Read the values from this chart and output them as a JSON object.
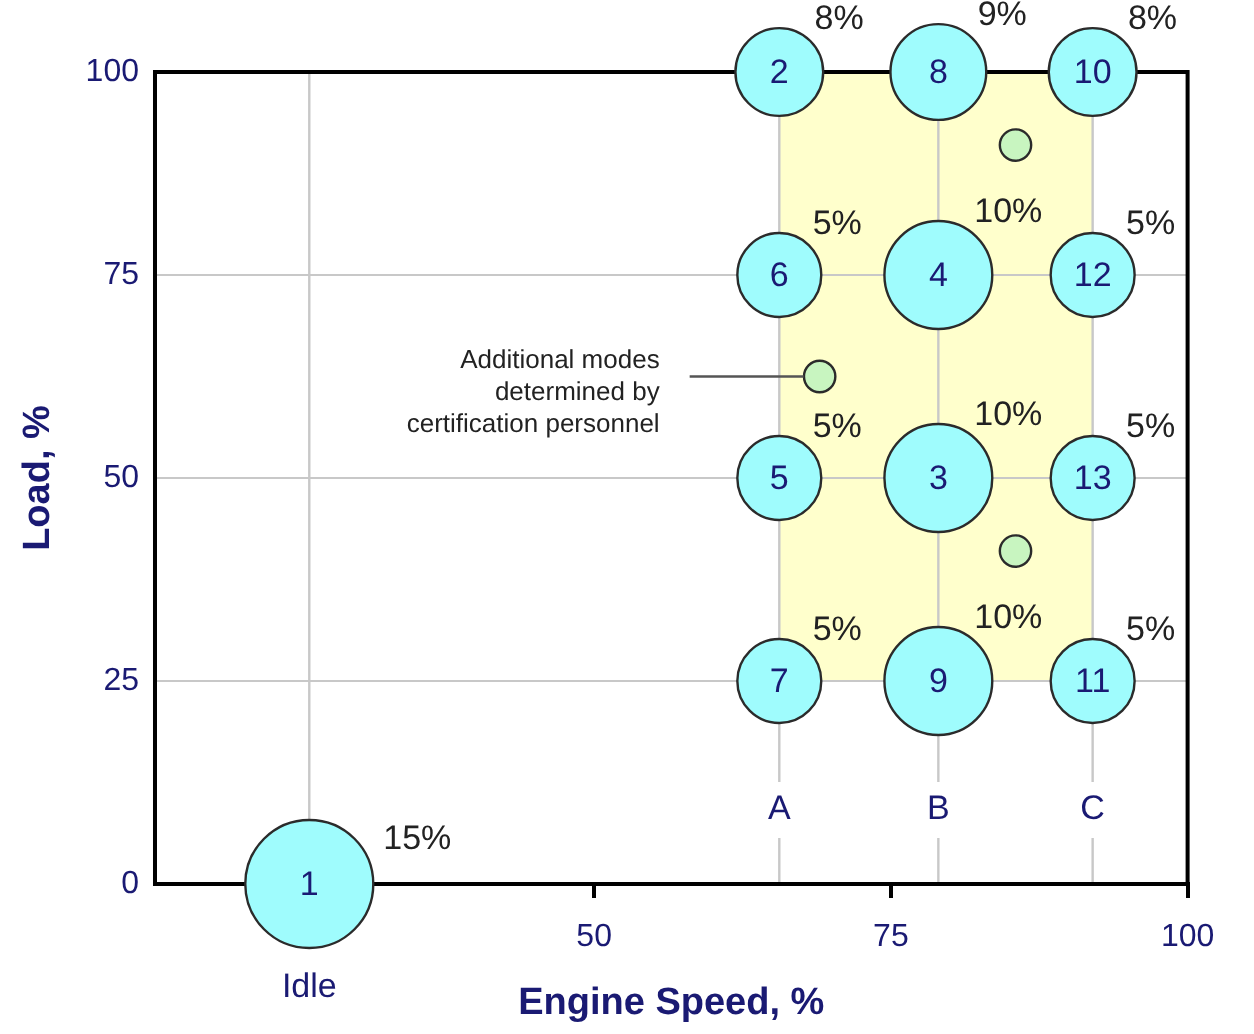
{
  "chart_data": {
    "type": "bubble",
    "xlabel": "Engine Speed, %",
    "ylabel": "Load, %",
    "xlim": [
      13,
      100
    ],
    "xticks": [
      50,
      75,
      100
    ],
    "ylim": [
      0,
      100
    ],
    "yticks": [
      0,
      25,
      50,
      75,
      100
    ],
    "grid": "y",
    "legend": false,
    "series": [
      {
        "name": "1",
        "color": "#9ffcfd",
        "x": [
          26
        ],
        "values": [
          0
        ],
        "sizes": [
          1
        ]
      },
      {
        "name": "2",
        "color": "#9ffcfd",
        "x": [
          65.6
        ],
        "values": [
          100
        ],
        "sizes": [
          0.47
        ]
      },
      {
        "name": "3",
        "color": "#9ffcfd",
        "x": [
          79
        ],
        "values": [
          50
        ],
        "sizes": [
          0.71
        ]
      },
      {
        "name": "4",
        "color": "#9ffcfd",
        "x": [
          79
        ],
        "values": [
          75
        ],
        "sizes": [
          0.71
        ]
      },
      {
        "name": "5",
        "color": "#9ffcfd",
        "x": [
          65.6
        ],
        "values": [
          50
        ],
        "sizes": [
          0.43
        ]
      },
      {
        "name": "6",
        "color": "#9ffcfd",
        "x": [
          65.6
        ],
        "values": [
          75
        ],
        "sizes": [
          0.43
        ]
      },
      {
        "name": "7",
        "color": "#9ffcfd",
        "x": [
          65.6
        ],
        "values": [
          25
        ],
        "sizes": [
          0.43
        ]
      },
      {
        "name": "8",
        "color": "#9ffcfd",
        "x": [
          79
        ],
        "values": [
          100
        ],
        "sizes": [
          0.56
        ]
      },
      {
        "name": "9",
        "color": "#9ffcfd",
        "x": [
          79
        ],
        "values": [
          25
        ],
        "sizes": [
          0.71
        ]
      },
      {
        "name": "10",
        "color": "#9ffcfd",
        "x": [
          92
        ],
        "values": [
          100
        ],
        "sizes": [
          0.47
        ]
      },
      {
        "name": "11",
        "color": "#9ffcfd",
        "x": [
          92
        ],
        "values": [
          25
        ],
        "sizes": [
          0.43
        ]
      },
      {
        "name": "12",
        "color": "#9ffcfd",
        "x": [
          92
        ],
        "values": [
          75
        ],
        "sizes": [
          0.43
        ]
      },
      {
        "name": "13",
        "color": "#9ffcfd",
        "x": [
          92
        ],
        "values": [
          50
        ],
        "sizes": [
          0.43
        ]
      },
      {
        "color": "#c8f5c0",
        "x": [
          85.5,
          69,
          85.5
        ],
        "values": [
          91,
          62.5,
          41
        ],
        "sizes": [
          0.06,
          0.06,
          0.06
        ]
      }
    ],
    "bands": [
      {
        "axis": "x",
        "from": 65.6,
        "to": 92,
        "color": "#ffffcc"
      }
    ],
    "ref_lines": [
      {
        "axis": "x",
        "value": 26,
        "label": "Idle",
        "color": "#c8c8c8"
      },
      {
        "axis": "x",
        "value": 65.6,
        "label": "A",
        "color": "#c8c8c8"
      },
      {
        "axis": "x",
        "value": 79,
        "label": "B",
        "color": "#c8c8c8"
      },
      {
        "axis": "x",
        "value": 92,
        "label": "C",
        "color": "#c8c8c8"
      }
    ],
    "annotations": [
      {
        "text": "15%",
        "x": 26,
        "y": 0
      },
      {
        "text": "8%",
        "x": 65.6,
        "y": 100
      },
      {
        "text": "10%",
        "x": 79,
        "y": 50
      },
      {
        "text": "10%",
        "x": 79,
        "y": 75
      },
      {
        "text": "5%",
        "x": 65.6,
        "y": 50
      },
      {
        "text": "5%",
        "x": 65.6,
        "y": 75
      },
      {
        "text": "5%",
        "x": 65.6,
        "y": 25
      },
      {
        "text": "9%",
        "x": 79,
        "y": 100
      },
      {
        "text": "10%",
        "x": 79,
        "y": 25
      },
      {
        "text": "8%",
        "x": 92,
        "y": 100
      },
      {
        "text": "5%",
        "x": 92,
        "y": 25
      },
      {
        "text": "5%",
        "x": 92,
        "y": 75
      },
      {
        "text": "5%",
        "x": 92,
        "y": 50
      },
      {
        "text": "Additional modes\ndetermined by\ncertification personnel",
        "x": 69,
        "y": 62.5
      }
    ]
  }
}
